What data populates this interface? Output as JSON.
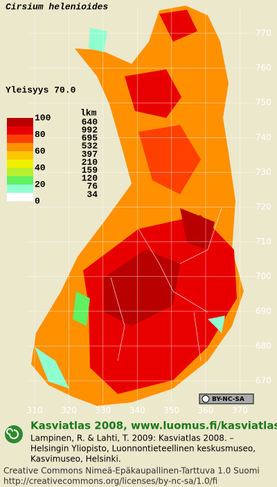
{
  "title": "Cirsium helenioides",
  "frequency": "Yleisyys 70.0",
  "legend": {
    "scale_labels": [
      "100",
      "80",
      "60",
      "40",
      "20",
      "0"
    ],
    "count_header": "lkm",
    "counts": [
      "640",
      "992",
      "695",
      "532",
      "397",
      "210",
      "159",
      "120",
      "76",
      "34"
    ],
    "colors": [
      "#b80000",
      "#e80000",
      "#ff4000",
      "#ff9000",
      "#ffc800",
      "#f0f000",
      "#b8f030",
      "#60f060",
      "#90ffd0",
      "#ffffff"
    ]
  },
  "grid": {
    "y_labels": [
      "770",
      "760",
      "750",
      "740",
      "730",
      "720",
      "710",
      "700",
      "690",
      "680",
      "670"
    ],
    "x_labels": [
      "310",
      "320",
      "330",
      "340",
      "350",
      "360",
      "370"
    ]
  },
  "license_badge": "BY-NC-SA",
  "footer": {
    "heading": "Kasviatlas 2008, www.luomus.fi/kasviatlas",
    "citation": [
      "Lampinen, R. & Lahti, T. 2009: Kasviatlas 2008. –",
      "Helsingin Yliopisto, Luonnontieteellinen keskusmuseo,",
      "Kasvimuseo, Helsinki."
    ],
    "license": [
      "Creative Commons Nimeä-Epäkaupallinen-Tarttuva 1.0 Suomi",
      "http://creativecommons.org/licenses/by-nc-sa/1.0/fi"
    ]
  }
}
